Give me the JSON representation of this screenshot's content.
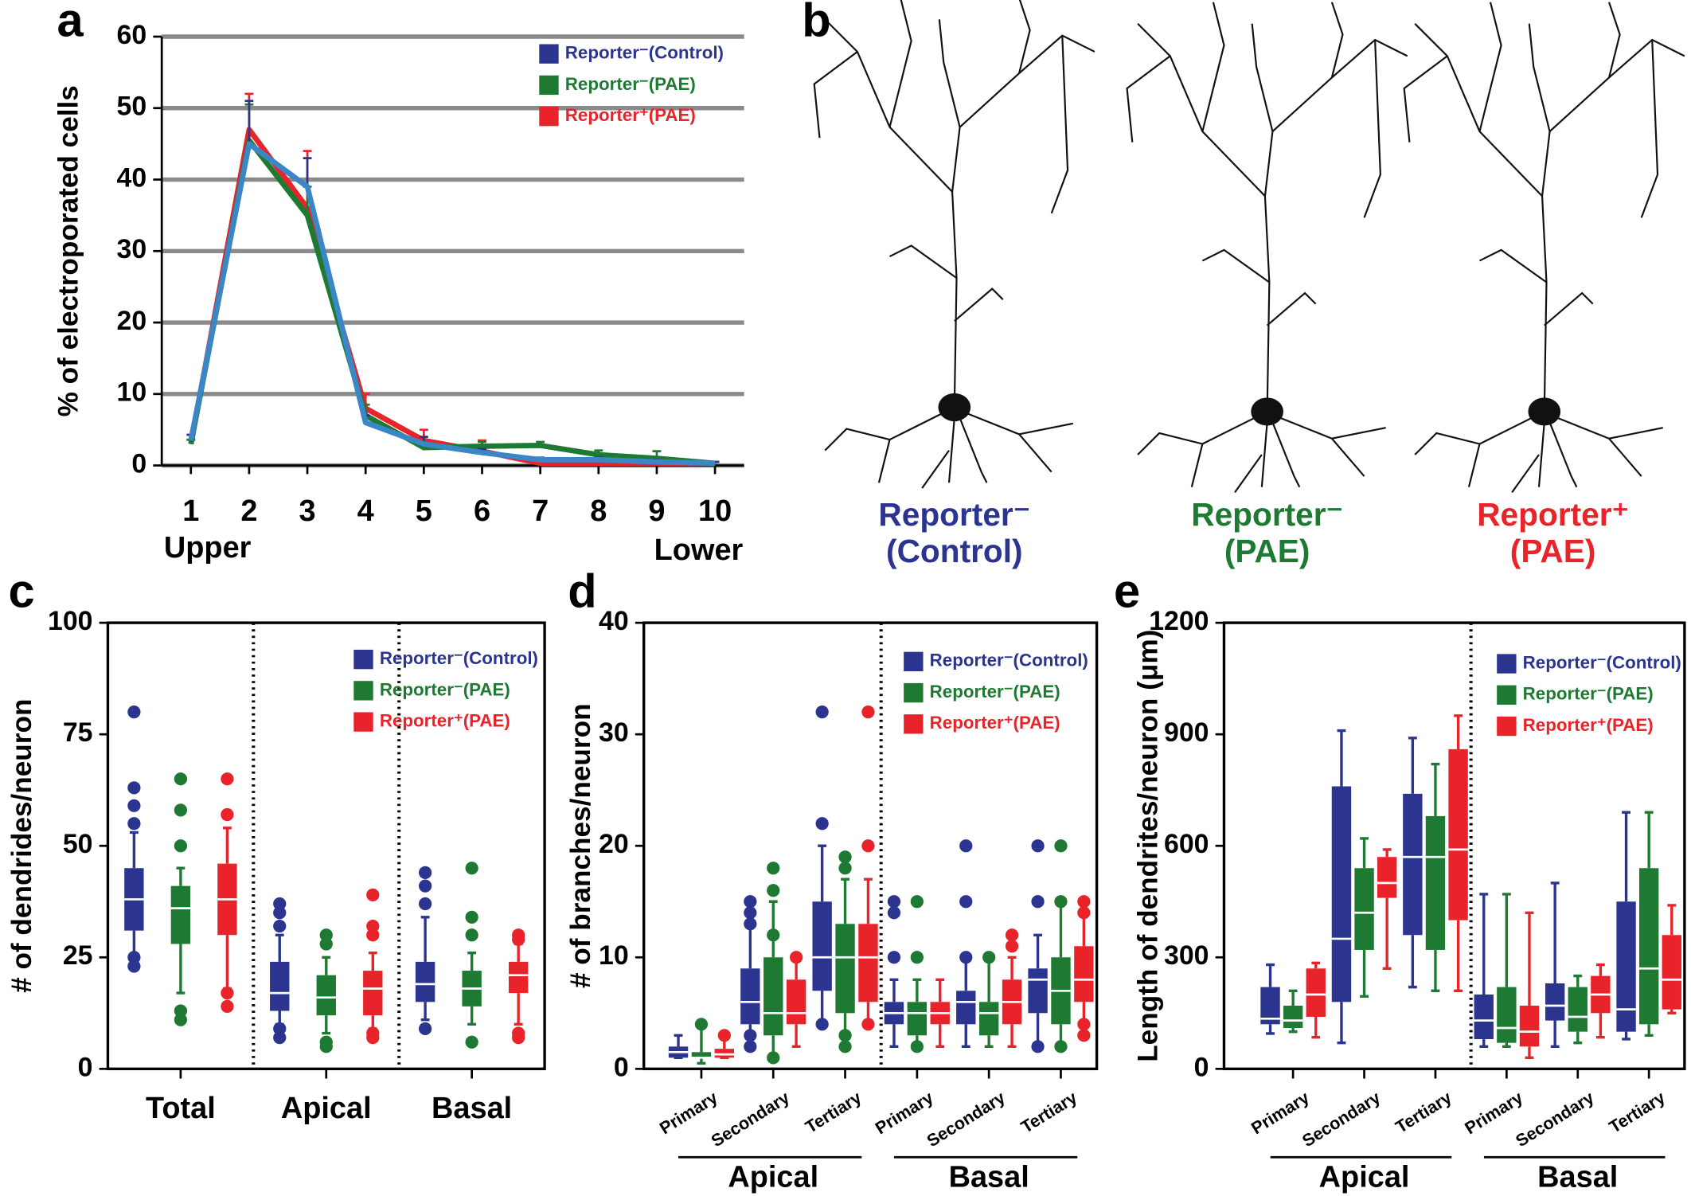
{
  "chart_data": [
    {
      "panel": "a",
      "type": "line",
      "ylabel": "% of electroporated cells",
      "x": [
        1,
        2,
        3,
        4,
        5,
        6,
        7,
        8,
        9,
        10
      ],
      "xlim": [
        0.5,
        10.5
      ],
      "xticks": [
        1,
        2,
        3,
        4,
        5,
        6,
        7,
        8,
        9,
        10
      ],
      "ylim": [
        0,
        60
      ],
      "yticks": [
        0,
        10,
        20,
        30,
        40,
        50,
        60
      ],
      "grid": true,
      "legend": "upper right",
      "annotations": [
        "Upper",
        "Lower"
      ],
      "series": [
        {
          "name": "Reporter⁻(Control)",
          "color": "#2b3590",
          "line_color": "#3a86c6",
          "values": [
            3.5,
            45,
            39,
            6,
            3,
            1.8,
            0.8,
            0.8,
            0.5,
            0.3
          ],
          "errors": [
            0.8,
            6,
            4,
            1,
            1,
            0.5,
            0.3,
            0.3,
            0.3,
            0.2
          ]
        },
        {
          "name": "Reporter⁻(PAE)",
          "color": "#1e7a32",
          "values": [
            3,
            45.5,
            35,
            7,
            2.5,
            2.7,
            2.8,
            1.5,
            1,
            0.3
          ],
          "errors": [
            0.6,
            5,
            4,
            1.5,
            0.8,
            0.6,
            0.5,
            0.6,
            1,
            0.2
          ]
        },
        {
          "name": "Reporter⁺(PAE)",
          "color": "#e8242a",
          "values": [
            3,
            47,
            36,
            8,
            3.5,
            2,
            0.3,
            0.3,
            0.3,
            0.3
          ],
          "errors": [
            0.6,
            5,
            8,
            2,
            1.5,
            1.5,
            0.3,
            0.3,
            0.3,
            0.2
          ]
        }
      ]
    },
    {
      "panel": "c",
      "type": "box",
      "ylabel": "# of dendrides/neuron",
      "categories": [
        "Total",
        "Apical",
        "Basal"
      ],
      "ylim": [
        0,
        100
      ],
      "yticks": [
        0,
        25,
        50,
        75,
        100
      ],
      "legend": "upper right",
      "series": [
        {
          "name": "Reporter⁻(Control)",
          "color": "#2b3590",
          "boxes": [
            {
              "min": 25,
              "q1": 31,
              "median": 38,
              "q3": 45,
              "max": 53,
              "outliers": [
                23,
                25,
                80,
                63,
                59,
                55
              ]
            },
            {
              "min": 10,
              "q1": 13,
              "median": 17,
              "q3": 24,
              "max": 30,
              "outliers": [
                7,
                9,
                37,
                35,
                32
              ]
            },
            {
              "min": 11,
              "q1": 15,
              "median": 19,
              "q3": 24,
              "max": 34,
              "outliers": [
                9,
                44,
                41,
                37
              ]
            }
          ]
        },
        {
          "name": "Reporter⁻(PAE)",
          "color": "#1e7a32",
          "boxes": [
            {
              "min": 17,
              "q1": 28,
              "median": 36,
              "q3": 41,
              "max": 45,
              "outliers": [
                11,
                13,
                65,
                58,
                50
              ]
            },
            {
              "min": 8,
              "q1": 12,
              "median": 16,
              "q3": 21,
              "max": 25,
              "outliers": [
                5,
                6,
                30,
                28
              ]
            },
            {
              "min": 10,
              "q1": 14,
              "median": 18,
              "q3": 22,
              "max": 26,
              "outliers": [
                6,
                45,
                34,
                30
              ]
            }
          ]
        },
        {
          "name": "Reporter⁺(PAE)",
          "color": "#e8242a",
          "boxes": [
            {
              "min": 18,
              "q1": 30,
              "median": 38,
              "q3": 46,
              "max": 54,
              "outliers": [
                14,
                17,
                65,
                57
              ]
            },
            {
              "min": 9,
              "q1": 12,
              "median": 18,
              "q3": 22,
              "max": 26,
              "outliers": [
                7,
                8,
                39,
                32,
                30
              ]
            },
            {
              "min": 10,
              "q1": 17,
              "median": 21,
              "q3": 24,
              "max": 28,
              "outliers": [
                7,
                8,
                30,
                29
              ]
            }
          ]
        }
      ]
    },
    {
      "panel": "d",
      "type": "box",
      "ylabel": "# of branches/neuron",
      "groups": [
        {
          "label": "Apical",
          "categories": [
            "Primary",
            "Secondary",
            "Tertiary"
          ]
        },
        {
          "label": "Basal",
          "categories": [
            "Primary",
            "Secondary",
            "Tertiary"
          ]
        }
      ],
      "ylim": [
        0,
        40
      ],
      "yticks": [
        0,
        10,
        20,
        30,
        40
      ],
      "legend": "upper right",
      "series": [
        {
          "name": "Reporter⁻(Control)",
          "color": "#2b3590",
          "boxes": [
            {
              "min": 1,
              "q1": 1,
              "median": 1.5,
              "q3": 2,
              "max": 3,
              "outliers": []
            },
            {
              "min": 2,
              "q1": 4,
              "median": 6,
              "q3": 9,
              "max": 15,
              "outliers": [
                2,
                3,
                15,
                14,
                13
              ]
            },
            {
              "min": 4,
              "q1": 7,
              "median": 10,
              "q3": 15,
              "max": 20,
              "outliers": [
                4,
                32,
                22
              ]
            },
            {
              "min": 2,
              "q1": 4,
              "median": 5,
              "q3": 6,
              "max": 8,
              "outliers": [
                15,
                14,
                10
              ]
            },
            {
              "min": 2,
              "q1": 4,
              "median": 6,
              "q3": 7,
              "max": 10,
              "outliers": [
                20,
                15,
                10
              ]
            },
            {
              "min": 2,
              "q1": 5,
              "median": 8,
              "q3": 9,
              "max": 12,
              "outliers": [
                2,
                20,
                15
              ]
            }
          ]
        },
        {
          "name": "Reporter⁻(PAE)",
          "color": "#1e7a32",
          "boxes": [
            {
              "min": 0.5,
              "q1": 1,
              "median": 1,
              "q3": 1.5,
              "max": 4,
              "outliers": [
                4
              ]
            },
            {
              "min": 1,
              "q1": 3,
              "median": 5,
              "q3": 10,
              "max": 15,
              "outliers": [
                1,
                18,
                16,
                12
              ]
            },
            {
              "min": 2,
              "q1": 5,
              "median": 10,
              "q3": 13,
              "max": 17,
              "outliers": [
                2,
                3,
                19,
                18
              ]
            },
            {
              "min": 2,
              "q1": 3,
              "median": 5,
              "q3": 6,
              "max": 8,
              "outliers": [
                2,
                15,
                10
              ]
            },
            {
              "min": 2,
              "q1": 3,
              "median": 5,
              "q3": 6,
              "max": 10,
              "outliers": [
                10
              ]
            },
            {
              "min": 2,
              "q1": 4,
              "median": 7,
              "q3": 10,
              "max": 15,
              "outliers": [
                2,
                20,
                15
              ]
            }
          ]
        },
        {
          "name": "Reporter⁺(PAE)",
          "color": "#e8242a",
          "boxes": [
            {
              "min": 1,
              "q1": 1,
              "median": 1.3,
              "q3": 1.8,
              "max": 3,
              "outliers": [
                3
              ]
            },
            {
              "min": 2,
              "q1": 4,
              "median": 5,
              "q3": 8,
              "max": 10,
              "outliers": [
                10
              ]
            },
            {
              "min": 4,
              "q1": 6,
              "median": 10,
              "q3": 13,
              "max": 17,
              "outliers": [
                4,
                32,
                20
              ]
            },
            {
              "min": 2,
              "q1": 4,
              "median": 5,
              "q3": 6,
              "max": 8,
              "outliers": []
            },
            {
              "min": 2,
              "q1": 4,
              "median": 6,
              "q3": 8,
              "max": 10,
              "outliers": [
                12,
                11
              ]
            },
            {
              "min": 3,
              "q1": 6,
              "median": 8,
              "q3": 11,
              "max": 15,
              "outliers": [
                3,
                15,
                14,
                4
              ]
            }
          ]
        }
      ]
    },
    {
      "panel": "e",
      "type": "box",
      "ylabel": "Length of dendrites/neuron (μm)",
      "groups": [
        {
          "label": "Apical",
          "categories": [
            "Primary",
            "Secondary",
            "Tertiary"
          ]
        },
        {
          "label": "Basal",
          "categories": [
            "Primary",
            "Secondary",
            "Tertiary"
          ]
        }
      ],
      "ylim": [
        0,
        1200
      ],
      "yticks": [
        0,
        300,
        600,
        900,
        1200
      ],
      "legend": "upper right",
      "series": [
        {
          "name": "Reporter⁻(Control)",
          "color": "#2b3590",
          "boxes": [
            {
              "min": 95,
              "q1": 120,
              "median": 135,
              "q3": 220,
              "max": 280,
              "outliers": []
            },
            {
              "min": 70,
              "q1": 180,
              "median": 350,
              "q3": 760,
              "max": 910,
              "outliers": []
            },
            {
              "min": 220,
              "q1": 360,
              "median": 570,
              "q3": 740,
              "max": 890,
              "outliers": []
            },
            {
              "min": 60,
              "q1": 80,
              "median": 130,
              "q3": 200,
              "max": 470,
              "outliers": []
            },
            {
              "min": 60,
              "q1": 130,
              "median": 170,
              "q3": 230,
              "max": 500,
              "outliers": []
            },
            {
              "min": 80,
              "q1": 100,
              "median": 160,
              "q3": 450,
              "max": 690,
              "outliers": []
            }
          ]
        },
        {
          "name": "Reporter⁻(PAE)",
          "color": "#1e7a32",
          "boxes": [
            {
              "min": 100,
              "q1": 110,
              "median": 130,
              "q3": 170,
              "max": 210,
              "outliers": []
            },
            {
              "min": 195,
              "q1": 320,
              "median": 420,
              "q3": 540,
              "max": 620,
              "outliers": []
            },
            {
              "min": 210,
              "q1": 320,
              "median": 570,
              "q3": 680,
              "max": 820,
              "outliers": []
            },
            {
              "min": 60,
              "q1": 70,
              "median": 110,
              "q3": 220,
              "max": 470,
              "outliers": []
            },
            {
              "min": 70,
              "q1": 100,
              "median": 140,
              "q3": 220,
              "max": 250,
              "outliers": []
            },
            {
              "min": 90,
              "q1": 120,
              "median": 270,
              "q3": 540,
              "max": 690,
              "outliers": []
            }
          ]
        },
        {
          "name": "Reporter⁺(PAE)",
          "color": "#e8242a",
          "boxes": [
            {
              "min": 85,
              "q1": 140,
              "median": 200,
              "q3": 270,
              "max": 285,
              "outliers": []
            },
            {
              "min": 270,
              "q1": 460,
              "median": 500,
              "q3": 570,
              "max": 590,
              "outliers": []
            },
            {
              "min": 210,
              "q1": 400,
              "median": 590,
              "q3": 860,
              "max": 950,
              "outliers": []
            },
            {
              "min": 30,
              "q1": 60,
              "median": 100,
              "q3": 170,
              "max": 420,
              "outliers": []
            },
            {
              "min": 85,
              "q1": 150,
              "median": 200,
              "q3": 250,
              "max": 280,
              "outliers": []
            },
            {
              "min": 150,
              "q1": 160,
              "median": 240,
              "q3": 360,
              "max": 440,
              "outliers": []
            }
          ]
        }
      ]
    }
  ],
  "panel_b": {
    "panel": "b",
    "cells": [
      {
        "name": "Reporter⁻",
        "condition": "(Control)",
        "color": "#2b3590"
      },
      {
        "name": "Reporter⁻",
        "condition": "(PAE)",
        "color": "#1e7a32"
      },
      {
        "name": "Reporter⁺",
        "condition": "(PAE)",
        "color": "#e8242a"
      }
    ]
  }
}
